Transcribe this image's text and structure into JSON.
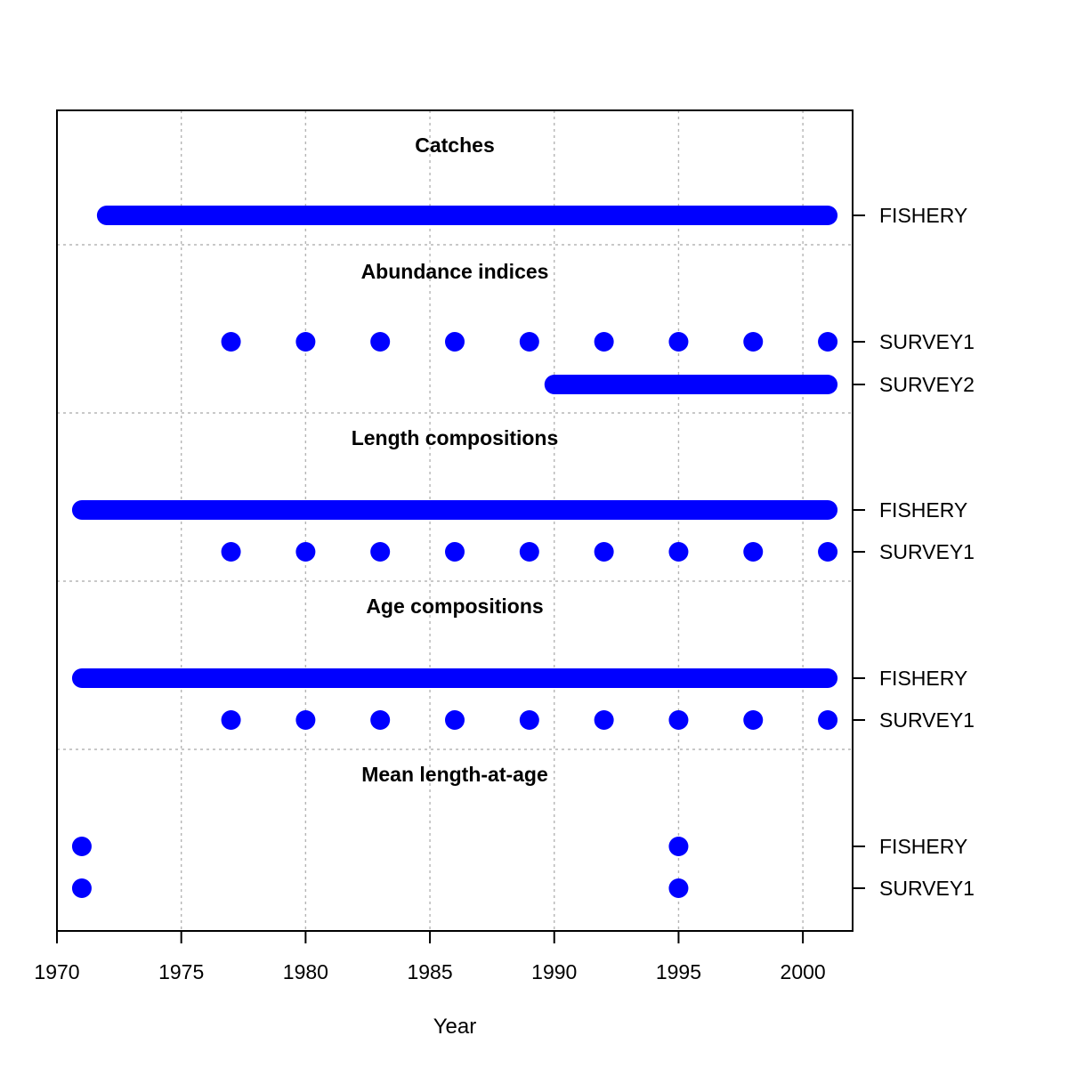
{
  "chart_data": {
    "type": "timeline",
    "xlabel": "Year",
    "xlim": [
      1970,
      2002
    ],
    "x_ticks": [
      1970,
      1975,
      1980,
      1985,
      1990,
      1995,
      2000
    ],
    "grid": true,
    "marker_color": "#0000ff",
    "groups": [
      {
        "title": "Catches",
        "series": [
          {
            "name": "FISHERY",
            "years": [
              1972,
              1973,
              1974,
              1975,
              1976,
              1977,
              1978,
              1979,
              1980,
              1981,
              1982,
              1983,
              1984,
              1985,
              1986,
              1987,
              1988,
              1989,
              1990,
              1991,
              1992,
              1993,
              1994,
              1995,
              1996,
              1997,
              1998,
              1999,
              2000,
              2001
            ]
          }
        ]
      },
      {
        "title": "Abundance indices",
        "series": [
          {
            "name": "SURVEY1",
            "years": [
              1977,
              1980,
              1983,
              1986,
              1989,
              1992,
              1995,
              1998,
              2001
            ]
          },
          {
            "name": "SURVEY2",
            "years": [
              1990,
              1991,
              1992,
              1993,
              1994,
              1995,
              1996,
              1997,
              1998,
              1999,
              2000,
              2001
            ]
          }
        ]
      },
      {
        "title": "Length compositions",
        "series": [
          {
            "name": "FISHERY",
            "years": [
              1971,
              1972,
              1973,
              1974,
              1975,
              1976,
              1977,
              1978,
              1979,
              1980,
              1981,
              1982,
              1983,
              1984,
              1985,
              1986,
              1987,
              1988,
              1989,
              1990,
              1991,
              1992,
              1993,
              1994,
              1995,
              1996,
              1997,
              1998,
              1999,
              2000,
              2001
            ]
          },
          {
            "name": "SURVEY1",
            "years": [
              1977,
              1980,
              1983,
              1986,
              1989,
              1992,
              1995,
              1998,
              2001
            ]
          }
        ]
      },
      {
        "title": "Age compositions",
        "series": [
          {
            "name": "FISHERY",
            "years": [
              1971,
              1972,
              1973,
              1974,
              1975,
              1976,
              1977,
              1978,
              1979,
              1980,
              1981,
              1982,
              1983,
              1984,
              1985,
              1986,
              1987,
              1988,
              1989,
              1990,
              1991,
              1992,
              1993,
              1994,
              1995,
              1996,
              1997,
              1998,
              1999,
              2000,
              2001
            ]
          },
          {
            "name": "SURVEY1",
            "years": [
              1977,
              1980,
              1983,
              1986,
              1989,
              1992,
              1995,
              1998,
              2001
            ]
          }
        ]
      },
      {
        "title": "Mean length-at-age",
        "series": [
          {
            "name": "FISHERY",
            "years": [
              1971,
              1995
            ]
          },
          {
            "name": "SURVEY1",
            "years": [
              1971,
              1995
            ]
          }
        ]
      }
    ]
  }
}
